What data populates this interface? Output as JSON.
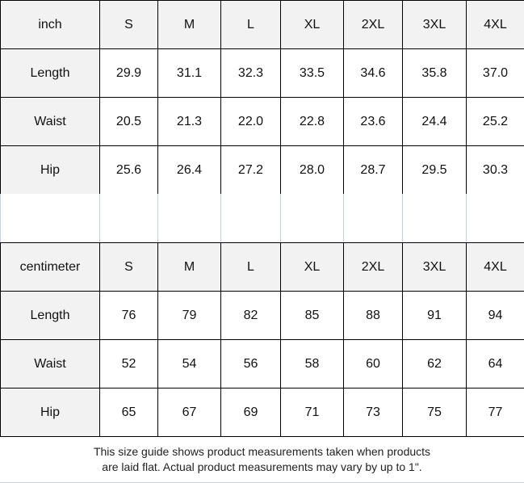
{
  "tables": [
    {
      "unit": "inch",
      "sizes": [
        "S",
        "M",
        "L",
        "XL",
        "2XL",
        "3XL",
        "4XL"
      ],
      "rows": [
        {
          "label": "Length",
          "values": [
            "29.9",
            "31.1",
            "32.3",
            "33.5",
            "34.6",
            "35.8",
            "37.0"
          ]
        },
        {
          "label": "Waist",
          "values": [
            "20.5",
            "21.3",
            "22.0",
            "22.8",
            "23.6",
            "24.4",
            "25.2"
          ]
        },
        {
          "label": "Hip",
          "values": [
            "25.6",
            "26.4",
            "27.2",
            "28.0",
            "28.7",
            "29.5",
            "30.3"
          ]
        }
      ]
    },
    {
      "unit": "centimeter",
      "sizes": [
        "S",
        "M",
        "L",
        "XL",
        "2XL",
        "3XL",
        "4XL"
      ],
      "rows": [
        {
          "label": "Length",
          "values": [
            "76",
            "79",
            "82",
            "85",
            "88",
            "91",
            "94"
          ]
        },
        {
          "label": "Waist",
          "values": [
            "52",
            "54",
            "56",
            "58",
            "60",
            "62",
            "64"
          ]
        },
        {
          "label": "Hip",
          "values": [
            "65",
            "67",
            "69",
            "71",
            "73",
            "75",
            "77"
          ]
        }
      ]
    }
  ],
  "note": {
    "line1": "This size guide shows product measurements taken when products",
    "line2": "are laid flat. Actual product measurements may vary by up to 1\"."
  },
  "colors": {
    "header_bg": "#f2f2f2",
    "border": "#000000"
  }
}
